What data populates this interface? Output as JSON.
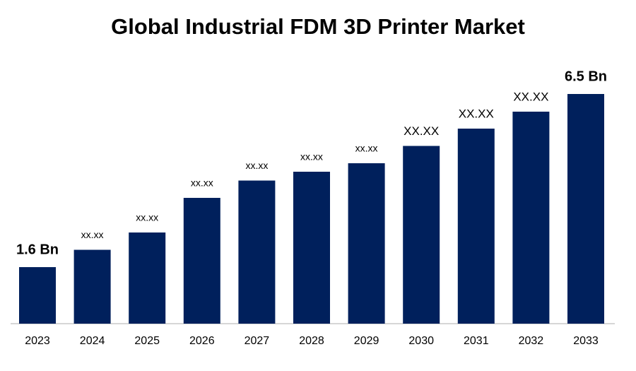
{
  "chart_data": {
    "type": "bar",
    "title": "Global Industrial FDM 3D Printer Market",
    "categories": [
      "2023",
      "2024",
      "2025",
      "2026",
      "2027",
      "2028",
      "2029",
      "2030",
      "2031",
      "2032",
      "2033"
    ],
    "values": [
      1.6,
      2.09,
      2.58,
      3.56,
      4.05,
      4.3,
      4.54,
      5.03,
      5.52,
      6.0,
      6.5
    ],
    "value_labels": [
      "1.6 Bn",
      "xx.xx",
      "xx.xx",
      "xx.xx",
      "xx.xx",
      "xx.xx",
      "xx.xx",
      "XX.XX",
      "XX.XX",
      "XX.XX",
      "6.5 Bn"
    ],
    "color": "#00205c"
  }
}
